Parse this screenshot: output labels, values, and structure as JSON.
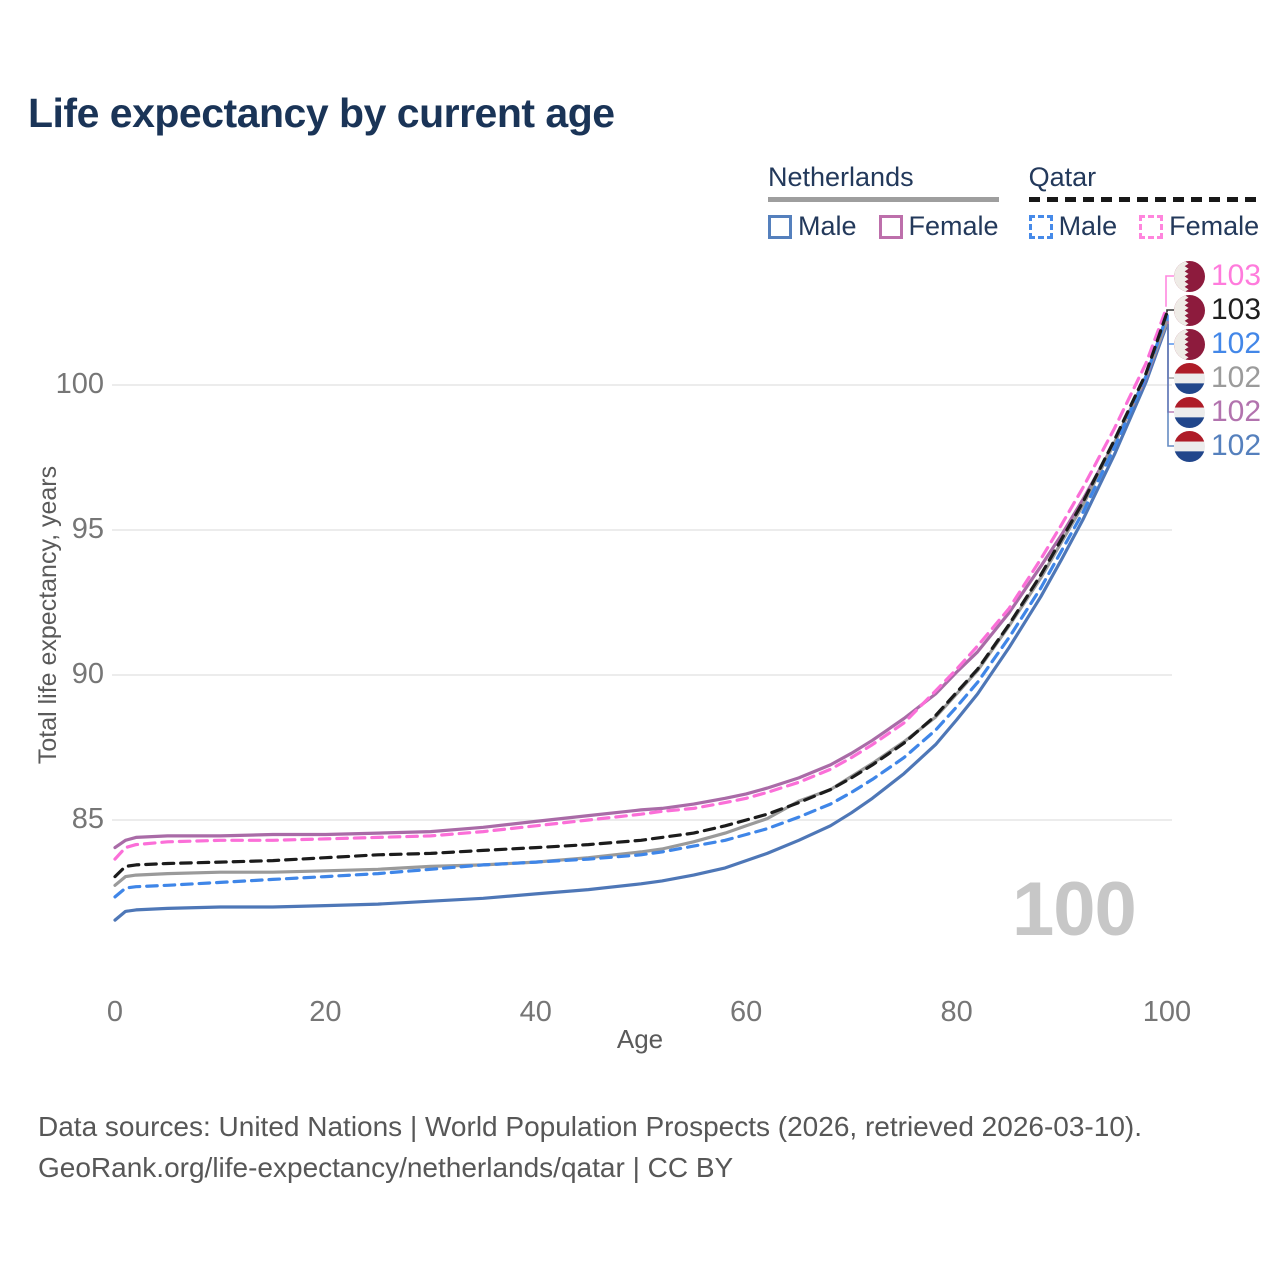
{
  "title": "Life expectancy by current age",
  "legend": {
    "groups": [
      {
        "country": "Netherlands",
        "line_style": "solid",
        "underline_color": "#9e9e9e",
        "items": [
          {
            "label": "Male",
            "color": "#5580bd"
          },
          {
            "label": "Female",
            "color": "#bd6fab"
          }
        ]
      },
      {
        "country": "Qatar",
        "line_style": "dashed",
        "underline_color": "#181818",
        "items": [
          {
            "label": "Male",
            "color": "#468ae9"
          },
          {
            "label": "Female",
            "color": "#ff85dd"
          }
        ]
      }
    ]
  },
  "chart_data": {
    "type": "line",
    "title": "Life expectancy by current age",
    "xlabel": "Age",
    "ylabel": "Total life expectancy, years",
    "xlim": [
      0,
      100
    ],
    "ylim": [
      80.5,
      103.5
    ],
    "xticks": [
      0,
      20,
      40,
      60,
      80,
      100
    ],
    "yticks": [
      85,
      90,
      95,
      100
    ],
    "grid": "horizontal",
    "gridline_color": "#e6e6e6",
    "watermark": "100",
    "ages": [
      0,
      1,
      2,
      5,
      10,
      15,
      20,
      25,
      30,
      35,
      40,
      45,
      50,
      52,
      55,
      58,
      60,
      62,
      65,
      68,
      70,
      72,
      75,
      78,
      80,
      82,
      85,
      88,
      90,
      92,
      95,
      98,
      100
    ],
    "series": [
      {
        "name": "Netherlands Male",
        "country": "Netherlands",
        "sex": "Male",
        "color": "#4e77b7",
        "dash": false,
        "values": [
          81.55,
          81.85,
          81.9,
          81.95,
          82.0,
          82.0,
          82.05,
          82.1,
          82.2,
          82.3,
          82.45,
          82.6,
          82.8,
          82.9,
          83.1,
          83.35,
          83.6,
          83.85,
          84.3,
          84.8,
          85.25,
          85.75,
          86.6,
          87.6,
          88.45,
          89.35,
          90.95,
          92.7,
          94.0,
          95.35,
          97.6,
          100.1,
          102.1
        ]
      },
      {
        "name": "Netherlands Female",
        "country": "Netherlands",
        "sex": "Female",
        "color": "#a96ba7",
        "dash": false,
        "values": [
          84.05,
          84.3,
          84.4,
          84.45,
          84.45,
          84.5,
          84.5,
          84.55,
          84.6,
          84.75,
          84.95,
          85.15,
          85.35,
          85.4,
          85.55,
          85.75,
          85.9,
          86.1,
          86.45,
          86.9,
          87.3,
          87.75,
          88.5,
          89.35,
          90.1,
          90.8,
          92.15,
          93.75,
          94.85,
          96.05,
          98.0,
          100.25,
          102.2
        ]
      },
      {
        "name": "Netherlands Both sexes",
        "country": "Netherlands",
        "sex": "Both",
        "color": "#9a9a9a",
        "dash": false,
        "values": [
          82.75,
          83.05,
          83.1,
          83.15,
          83.2,
          83.2,
          83.25,
          83.3,
          83.4,
          83.45,
          83.55,
          83.7,
          83.9,
          84.0,
          84.25,
          84.55,
          84.8,
          85.05,
          85.65,
          86.05,
          86.5,
          86.95,
          87.7,
          88.55,
          89.35,
          90.15,
          91.7,
          93.35,
          94.6,
          95.85,
          98.0,
          100.3,
          102.2
        ]
      },
      {
        "name": "Qatar Male",
        "country": "Qatar",
        "sex": "Male",
        "color": "#3f86e8",
        "dash": true,
        "values": [
          82.35,
          82.65,
          82.7,
          82.75,
          82.85,
          82.95,
          83.05,
          83.15,
          83.3,
          83.45,
          83.55,
          83.65,
          83.8,
          83.9,
          84.1,
          84.3,
          84.5,
          84.7,
          85.1,
          85.55,
          85.95,
          86.4,
          87.15,
          88.1,
          88.9,
          89.75,
          91.3,
          93.0,
          94.3,
          95.6,
          97.85,
          100.3,
          102.4
        ]
      },
      {
        "name": "Qatar Female",
        "country": "Qatar",
        "sex": "Female",
        "color": "#fb6fd8",
        "dash": true,
        "values": [
          83.65,
          84.05,
          84.15,
          84.25,
          84.3,
          84.3,
          84.35,
          84.4,
          84.45,
          84.6,
          84.8,
          85.0,
          85.2,
          85.3,
          85.4,
          85.6,
          85.75,
          85.95,
          86.3,
          86.75,
          87.15,
          87.6,
          88.35,
          89.45,
          90.2,
          91.0,
          92.3,
          94.0,
          95.2,
          96.45,
          98.5,
          100.75,
          102.7
        ]
      },
      {
        "name": "Qatar Both sexes",
        "country": "Qatar",
        "sex": "Both",
        "color": "#1c1c1c",
        "dash": true,
        "values": [
          83.05,
          83.4,
          83.45,
          83.5,
          83.55,
          83.6,
          83.7,
          83.8,
          83.85,
          83.95,
          84.05,
          84.15,
          84.3,
          84.4,
          84.55,
          84.8,
          85.0,
          85.2,
          85.6,
          86.05,
          86.45,
          86.9,
          87.65,
          88.6,
          89.4,
          90.2,
          91.75,
          93.45,
          94.7,
          95.95,
          98.1,
          100.4,
          102.5
        ]
      }
    ],
    "end_labels": [
      {
        "value": "103",
        "series": "Qatar Female",
        "flag": "qatar",
        "color": "#ff7bdc"
      },
      {
        "value": "103",
        "series": "Qatar Both sexes",
        "flag": "qatar",
        "color": "#1f1f1f"
      },
      {
        "value": "102",
        "series": "Qatar Male",
        "flag": "qatar",
        "color": "#4387e8"
      },
      {
        "value": "102",
        "series": "Netherlands Both sexes",
        "flag": "netherlands",
        "color": "#9b9b9b"
      },
      {
        "value": "102",
        "series": "Netherlands Female",
        "flag": "netherlands",
        "color": "#b273ae"
      },
      {
        "value": "102",
        "series": "Netherlands Male",
        "flag": "netherlands",
        "color": "#5580bd"
      }
    ]
  },
  "flag_colors": {
    "qatar_maroon": "#8d1b3d",
    "qatar_white": "#efece7",
    "nl_red": "#ae1c28",
    "nl_white": "#ececec",
    "nl_blue": "#21468b"
  },
  "footer": {
    "line1": "Data sources: United Nations | World Population Prospects (2026, retrieved 2026-03-10).",
    "line2": "GeoRank.org/life-expectancy/netherlands/qatar | CC BY"
  }
}
